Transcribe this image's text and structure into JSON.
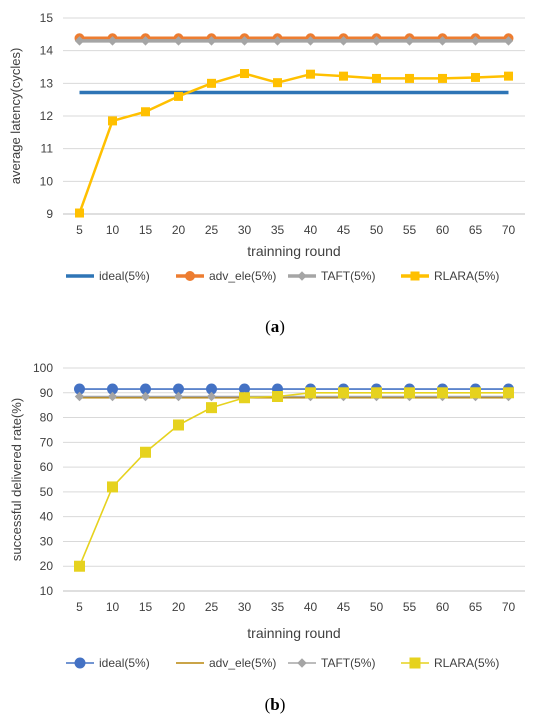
{
  "chart_data": [
    {
      "type": "line",
      "title": "",
      "xlabel": "trainning round",
      "ylabel": "average latency(cycles)",
      "x": [
        "5",
        "10",
        "15",
        "20",
        "25",
        "30",
        "35",
        "40",
        "45",
        "50",
        "55",
        "60",
        "65",
        "70"
      ],
      "ylim": [
        9,
        15
      ],
      "yticks": [
        "9",
        "10",
        "11",
        "12",
        "13",
        "14",
        "15"
      ],
      "grid": true,
      "legend_position": "bottom",
      "caption": {
        "open": "(",
        "letter": "a",
        "close": ")"
      },
      "series": [
        {
          "name": "ideal(5%)",
          "color": "#2E75B6",
          "marker": "none",
          "values": [
            12.72,
            12.72,
            12.72,
            12.72,
            12.72,
            12.72,
            12.72,
            12.72,
            12.72,
            12.72,
            12.72,
            12.72,
            12.72,
            12.72
          ]
        },
        {
          "name": "adv_ele(5%)",
          "color": "#ED7D31",
          "marker": "circle",
          "values": [
            14.38,
            14.38,
            14.38,
            14.38,
            14.38,
            14.38,
            14.38,
            14.38,
            14.38,
            14.38,
            14.38,
            14.38,
            14.38,
            14.38
          ]
        },
        {
          "name": "TAFT(5%)",
          "color": "#A5A5A5",
          "marker": "diamond",
          "values": [
            14.3,
            14.3,
            14.3,
            14.3,
            14.3,
            14.3,
            14.3,
            14.3,
            14.3,
            14.3,
            14.3,
            14.3,
            14.3,
            14.3
          ]
        },
        {
          "name": "RLARA(5%)",
          "color": "#FFC000",
          "marker": "square",
          "values": [
            9.03,
            11.85,
            12.13,
            12.6,
            13.0,
            13.3,
            13.02,
            13.28,
            13.22,
            13.15,
            13.15,
            13.15,
            13.18,
            13.22
          ]
        }
      ]
    },
    {
      "type": "line",
      "title": "",
      "xlabel": "trainning round",
      "ylabel": "successful delivered rate(%)",
      "x": [
        "5",
        "10",
        "15",
        "20",
        "25",
        "30",
        "35",
        "40",
        "45",
        "50",
        "55",
        "60",
        "65",
        "70"
      ],
      "ylim": [
        10,
        100
      ],
      "yticks": [
        "10",
        "20",
        "30",
        "40",
        "50",
        "60",
        "70",
        "80",
        "90",
        "100"
      ],
      "grid": true,
      "legend_position": "bottom",
      "caption": {
        "open": "(",
        "letter": "b",
        "close": ")"
      },
      "series": [
        {
          "name": "ideal(5%)",
          "color": "#4472C4",
          "marker": "circle",
          "values": [
            91.5,
            91.5,
            91.5,
            91.5,
            91.5,
            91.5,
            91.5,
            91.5,
            91.5,
            91.5,
            91.5,
            91.5,
            91.5,
            91.5
          ]
        },
        {
          "name": "adv_ele(5%)",
          "color": "#B8860B",
          "marker": "none",
          "values": [
            88,
            88,
            88,
            88,
            88,
            88,
            88,
            88,
            88,
            88,
            88,
            88,
            88,
            88
          ]
        },
        {
          "name": "TAFT(5%)",
          "color": "#A5A5A5",
          "marker": "diamond",
          "values": [
            88.5,
            88.5,
            88.5,
            88.5,
            88.5,
            88.5,
            88.5,
            88.5,
            88.5,
            88.5,
            88.5,
            88.5,
            88.5,
            88.5
          ]
        },
        {
          "name": "RLARA(5%)",
          "color": "#E6D21E",
          "marker": "square",
          "values": [
            20,
            52,
            66,
            77,
            84,
            88,
            88.5,
            90,
            90,
            90,
            90,
            90,
            90,
            90
          ]
        }
      ]
    }
  ]
}
